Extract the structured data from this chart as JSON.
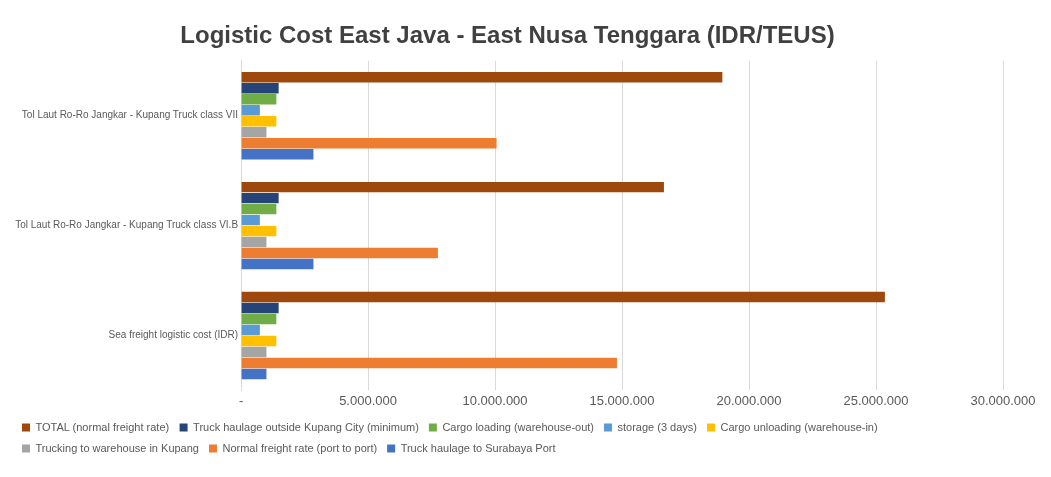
{
  "chart_data": {
    "type": "bar",
    "orientation": "horizontal",
    "title": "Logistic Cost East Java - East Nusa Tenggara (IDR/TEUS)",
    "categories": [
      "Tol Laut Ro-Ro Jangkar - Kupang Truck class VII",
      "Tol Laut Ro-Ro Jangkar - Kupang Truck class VI.B",
      "Sea freight logistic cost (IDR)"
    ],
    "series": [
      {
        "name": "TOTAL (normal freight rate)",
        "color": "#9e480e",
        "values": [
          18950000,
          16650000,
          25350000
        ]
      },
      {
        "name": "Truck haulage outside Kupang City (minimum)",
        "color": "#264478",
        "values": [
          1480000,
          1480000,
          1480000
        ]
      },
      {
        "name": "Cargo loading (warehouse-out)",
        "color": "#70ad47",
        "values": [
          1390000,
          1390000,
          1390000
        ]
      },
      {
        "name": "storage (3 days)",
        "color": "#5b9bd5",
        "values": [
          740000,
          740000,
          740000
        ]
      },
      {
        "name": "Cargo unloading (warehouse-in)",
        "color": "#ffc000",
        "values": [
          1390000,
          1390000,
          1390000
        ]
      },
      {
        "name": "Trucking to warehouse in Kupang",
        "color": "#a5a5a5",
        "values": [
          1000000,
          1000000,
          1000000
        ]
      },
      {
        "name": "Normal freight rate (port to port)",
        "color": "#ed7d31",
        "values": [
          10060000,
          7750000,
          14800000
        ]
      },
      {
        "name": "Truck haulage to Surabaya Port",
        "color": "#4472c4",
        "values": [
          2850000,
          2850000,
          1000000
        ]
      }
    ],
    "xlim": [
      0,
      30000000
    ],
    "xticks": [
      {
        "value": 0,
        "label": "-"
      },
      {
        "value": 5000000,
        "label": "5.000.000"
      },
      {
        "value": 10000000,
        "label": "10.000.000"
      },
      {
        "value": 15000000,
        "label": "15.000.000"
      },
      {
        "value": 20000000,
        "label": "20.000.000"
      },
      {
        "value": 25000000,
        "label": "25.000.000"
      },
      {
        "value": 30000000,
        "label": "30.000.000"
      }
    ],
    "grid": "x",
    "legend": "bottom"
  }
}
